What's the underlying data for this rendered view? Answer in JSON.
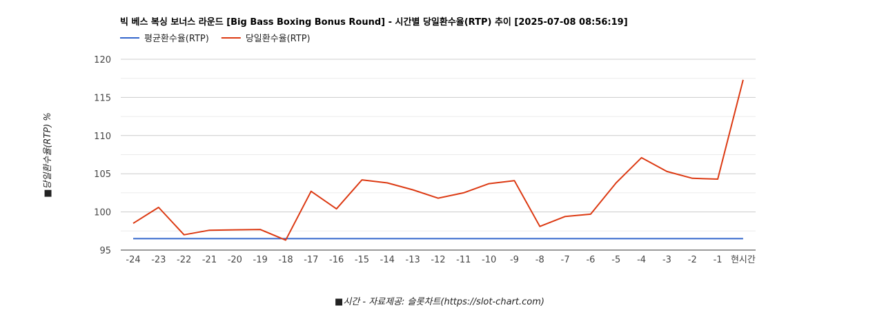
{
  "chart_data": {
    "type": "line",
    "title": "빅 베스 복싱 보너스 라운드 [Big Bass Boxing Bonus Round] - 시간별 당일환수율(RTP) 추이 [2025-07-08 08:56:19]",
    "xlabel": "■시간 - 자료제공: 슬롯차트(https://slot-chart.com)",
    "ylabel": "■당일환수율(RTP) %",
    "categories": [
      "-24",
      "-23",
      "-22",
      "-21",
      "-20",
      "-19",
      "-18",
      "-17",
      "-16",
      "-15",
      "-14",
      "-13",
      "-12",
      "-11",
      "-10",
      "-9",
      "-8",
      "-7",
      "-6",
      "-5",
      "-4",
      "-3",
      "-2",
      "-1",
      "현시간"
    ],
    "ylim": [
      95,
      120
    ],
    "yticks": [
      95,
      100,
      105,
      110,
      115,
      120
    ],
    "grid": true,
    "legend_position": "top-left",
    "series": [
      {
        "name": "평균환수율(RTP)",
        "color": "#3366cc",
        "values": [
          96.5,
          96.5,
          96.5,
          96.5,
          96.5,
          96.5,
          96.5,
          96.5,
          96.5,
          96.5,
          96.5,
          96.5,
          96.5,
          96.5,
          96.5,
          96.5,
          96.5,
          96.5,
          96.5,
          96.5,
          96.5,
          96.5,
          96.5,
          96.5,
          96.5
        ]
      },
      {
        "name": "당일환수율(RTP)",
        "color": "#dc3912",
        "values": [
          98.5,
          100.6,
          97.0,
          97.6,
          97.65,
          97.7,
          96.3,
          102.7,
          100.4,
          104.2,
          103.8,
          102.9,
          101.8,
          102.5,
          103.7,
          104.1,
          98.1,
          99.4,
          99.7,
          103.8,
          107.1,
          105.3,
          104.4,
          104.3,
          117.3
        ]
      }
    ]
  }
}
